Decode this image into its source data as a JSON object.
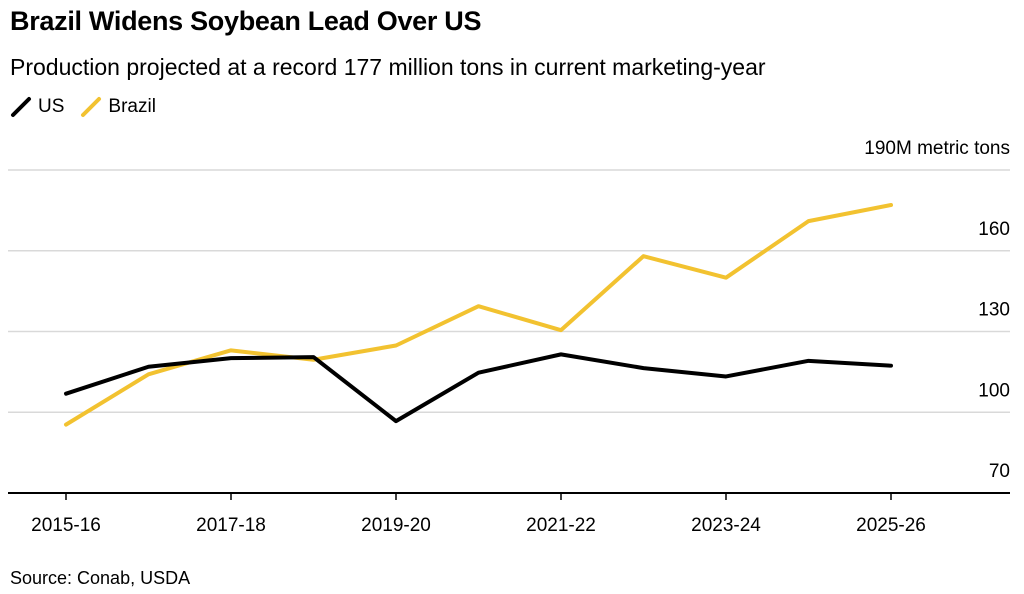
{
  "header": {
    "title": "Brazil Widens Soybean Lead Over US",
    "subtitle": "Production projected at a record 177 million tons in current marketing-year"
  },
  "footer": {
    "source": "Source: Conab, USDA"
  },
  "colors": {
    "us": "#000000",
    "brazil": "#f2c230",
    "grid": "#d9d9d9",
    "axis": "#000000"
  },
  "chart_data": {
    "type": "line",
    "title": "Brazil Widens Soybean Lead Over US",
    "subtitle": "Production projected at a record 177 million tons in current marketing-year",
    "x": [
      "2015-16",
      "2016-17",
      "2017-18",
      "2018-19",
      "2019-20",
      "2020-21",
      "2021-22",
      "2022-23",
      "2023-24",
      "2024-25",
      "2025-26"
    ],
    "x_tick_labels": [
      "2015-16",
      "2017-18",
      "2019-20",
      "2021-22",
      "2023-24",
      "2025-26"
    ],
    "y_tick_labels": [
      "190M metric tons",
      "160",
      "130",
      "100",
      "70"
    ],
    "y_ticks": [
      190,
      160,
      130,
      100,
      70
    ],
    "ylim": [
      70,
      190
    ],
    "grid": true,
    "legend_position": "top-left",
    "series": [
      {
        "name": "US",
        "color": "#000000",
        "values": [
          106.9,
          116.9,
          120.1,
          120.5,
          96.7,
          114.7,
          121.5,
          116.4,
          113.3,
          119.1,
          117.3
        ]
      },
      {
        "name": "Brazil",
        "color": "#f2c230",
        "values": [
          95.4,
          114.1,
          123.0,
          119.5,
          124.8,
          139.4,
          130.5,
          158.0,
          150.0,
          171.0,
          177.0
        ]
      }
    ]
  }
}
